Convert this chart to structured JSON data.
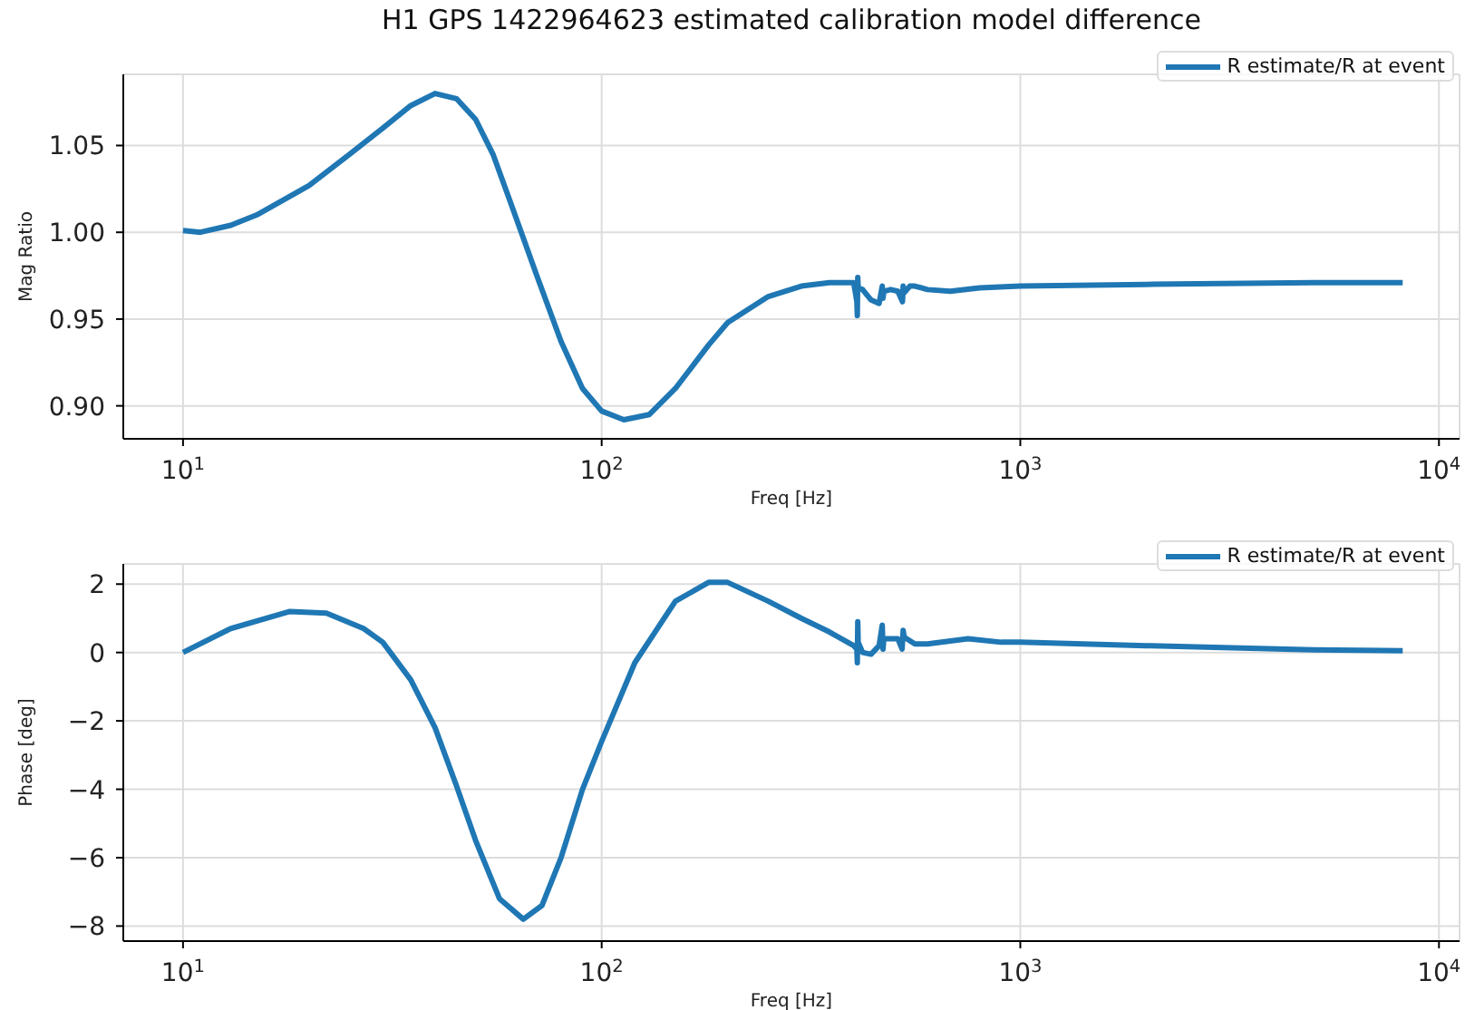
{
  "chart_data": [
    {
      "type": "line",
      "title": "H1 GPS 1422964623 estimated calibration model difference",
      "xlabel": "Freq [Hz]",
      "ylabel": "Mag Ratio",
      "log": "x",
      "grid": true,
      "legend": "top right",
      "marker": "none",
      "line_style": "solid",
      "xlim": [
        7.2,
        11200
      ],
      "xticks": [
        {
          "value": 10,
          "label": "10$^{1}$"
        },
        {
          "value": 100,
          "label": "10$^{2}$"
        },
        {
          "value": 1000,
          "label": "10$^{3}$"
        },
        {
          "value": 10000,
          "label": "10$^{4}$"
        }
      ],
      "ylim": [
        0.881,
        1.091
      ],
      "yticks": [
        {
          "value": 0.9,
          "label": "0.90"
        },
        {
          "value": 0.95,
          "label": "0.95"
        },
        {
          "value": 1.0,
          "label": "1.00"
        },
        {
          "value": 1.05,
          "label": "1.05"
        }
      ],
      "series": [
        {
          "name": "R estimate/R at event",
          "color": "#1f77b4",
          "x": [
            10,
            11,
            13,
            15,
            20,
            25,
            30,
            35,
            40,
            45,
            50,
            55,
            60,
            70,
            80,
            90,
            100,
            113,
            130,
            150,
            180,
            200,
            250,
            300,
            350,
            400,
            407,
            408,
            409,
            410,
            420,
            440,
            460,
            468,
            470,
            472,
            490,
            510,
            523,
            525,
            527,
            545,
            560,
            600,
            680,
            800,
            1000,
            2000,
            5000,
            8192
          ],
          "values": [
            1.001,
            1.0,
            1.004,
            1.01,
            1.027,
            1.045,
            1.06,
            1.073,
            1.08,
            1.077,
            1.065,
            1.045,
            1.02,
            0.975,
            0.937,
            0.91,
            0.897,
            0.892,
            0.895,
            0.91,
            0.935,
            0.948,
            0.963,
            0.969,
            0.971,
            0.971,
            0.96,
            0.952,
            0.974,
            0.968,
            0.967,
            0.961,
            0.959,
            0.969,
            0.962,
            0.966,
            0.967,
            0.966,
            0.96,
            0.969,
            0.965,
            0.969,
            0.969,
            0.967,
            0.966,
            0.968,
            0.969,
            0.97,
            0.971,
            0.971
          ]
        }
      ]
    },
    {
      "type": "line",
      "xlabel": "Freq [Hz]",
      "ylabel": "Phase [deg]",
      "log": "x",
      "grid": true,
      "legend": "top right",
      "marker": "none",
      "line_style": "solid",
      "xlim": [
        7.2,
        11200
      ],
      "xticks": [
        {
          "value": 10,
          "label": "10$^{1}$"
        },
        {
          "value": 100,
          "label": "10$^{2}$"
        },
        {
          "value": 1000,
          "label": "10$^{3}$"
        },
        {
          "value": 10000,
          "label": "10$^{4}$"
        }
      ],
      "ylim": [
        -8.44,
        2.59
      ],
      "yticks": [
        {
          "value": -8,
          "label": "−8"
        },
        {
          "value": -6,
          "label": "−6"
        },
        {
          "value": -4,
          "label": "−4"
        },
        {
          "value": -2,
          "label": "−2"
        },
        0,
        2
      ],
      "series": [
        {
          "name": "R estimate/R at event",
          "color": "#1f77b4",
          "x": [
            10,
            13,
            18,
            22,
            27,
            30,
            35,
            40,
            45,
            50,
            57,
            65,
            72,
            80,
            90,
            100,
            120,
            150,
            180,
            200,
            250,
            300,
            350,
            400,
            407,
            408,
            409,
            410,
            420,
            440,
            460,
            468,
            470,
            472,
            490,
            510,
            522,
            525,
            528,
            560,
            600,
            750,
            900,
            1000,
            2000,
            5000,
            8192
          ],
          "values": [
            0,
            0.7,
            1.2,
            1.15,
            0.7,
            0.3,
            -0.8,
            -2.2,
            -3.9,
            -5.5,
            -7.2,
            -7.8,
            -7.4,
            -6,
            -4,
            -2.6,
            -0.3,
            1.5,
            2.05,
            2.05,
            1.5,
            1.0,
            0.6,
            0.2,
            0.1,
            -0.3,
            0.9,
            0.3,
            0.0,
            -0.05,
            0.2,
            0.8,
            0.1,
            0.4,
            0.4,
            0.4,
            0.1,
            0.65,
            0.45,
            0.25,
            0.25,
            0.4,
            0.3,
            0.3,
            0.2,
            0.08,
            0.05
          ]
        }
      ]
    }
  ]
}
